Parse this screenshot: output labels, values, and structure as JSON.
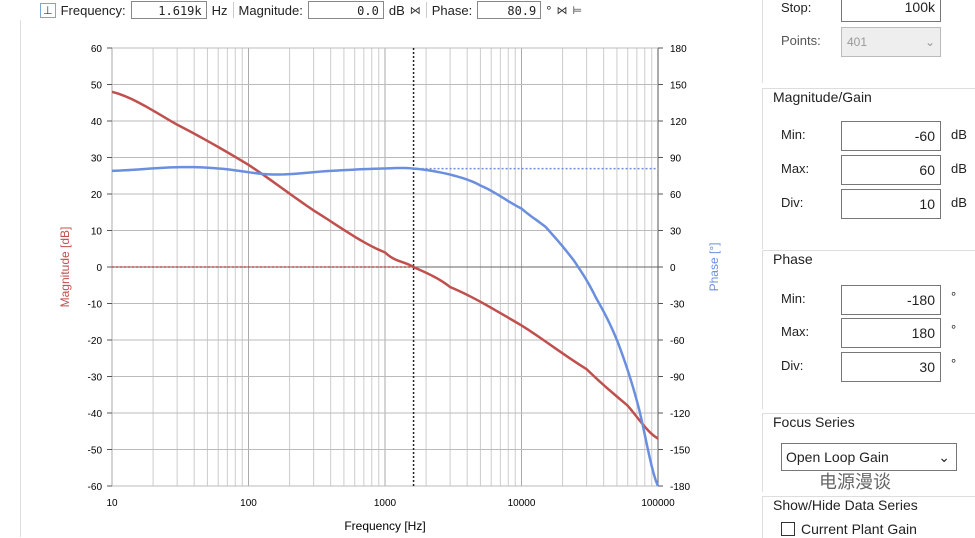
{
  "toolbar": {
    "frequency_label": "Frequency:",
    "frequency_value": "1.619k",
    "frequency_unit": "Hz",
    "magnitude_label": "Magnitude:",
    "magnitude_value": "0.0",
    "magnitude_unit": "dB",
    "phase_label": "Phase:",
    "phase_value": "80.9",
    "phase_unit": "°"
  },
  "sweep": {
    "stop_label": "Stop:",
    "stop_value": "100k",
    "points_label": "Points:",
    "points_value": "401"
  },
  "magnitude_gain": {
    "title": "Magnitude/Gain",
    "min_label": "Min:",
    "min": "-60",
    "max_label": "Max:",
    "max": "60",
    "div_label": "Div:",
    "div": "10",
    "unit": "dB"
  },
  "phase": {
    "title": "Phase",
    "min_label": "Min:",
    "min": "-180",
    "max_label": "Max:",
    "max": "180",
    "div_label": "Div:",
    "div": "30",
    "unit": "°"
  },
  "focus": {
    "title": "Focus Series",
    "selected": "Open Loop Gain"
  },
  "show_hide": {
    "title": "Show/Hide Data Series",
    "item": "Current Plant Gain"
  },
  "watermark": "电源漫谈",
  "chart_data": {
    "type": "line",
    "xlabel": "Frequency [Hz]",
    "ylabel": "Magnitude [dB]",
    "y2label": "Phase [°]",
    "xscale": "log",
    "xlim": [
      10,
      100000
    ],
    "ylim": [
      -60,
      60
    ],
    "y2lim": [
      -180,
      180
    ],
    "grid": true,
    "xticks": [
      "10",
      "100",
      "1000",
      "10000",
      "100000"
    ],
    "yticks": [
      "60",
      "50",
      "40",
      "30",
      "20",
      "10",
      "0",
      "-10",
      "-20",
      "-30",
      "-40",
      "-50",
      "-60"
    ],
    "y2ticks": [
      "180",
      "150",
      "120",
      "90",
      "60",
      "30",
      "0",
      "-30",
      "-60",
      "-90",
      "-120",
      "-150",
      "-180"
    ],
    "cursor_x": 1619,
    "series": [
      {
        "name": "Magnitude",
        "axis": "left",
        "color": "#c0504d",
        "x": [
          10,
          30,
          100,
          300,
          1000,
          1619,
          3000,
          10000,
          30000,
          60000,
          100000
        ],
        "values": [
          48,
          39,
          28,
          15.5,
          4,
          0,
          -5.5,
          -16,
          -28,
          -38,
          -47
        ]
      },
      {
        "name": "Phase",
        "axis": "right",
        "color": "#6b8fdf",
        "x": [
          10,
          30,
          60,
          150,
          400,
          1000,
          1619,
          3000,
          5000,
          10000,
          15000,
          20000,
          26000,
          35000,
          50000,
          70000,
          100000
        ],
        "values": [
          79,
          82,
          81,
          76,
          79,
          81,
          80.9,
          76,
          67,
          48,
          33,
          17,
          0,
          -25,
          -60,
          -110,
          -180
        ]
      }
    ]
  }
}
